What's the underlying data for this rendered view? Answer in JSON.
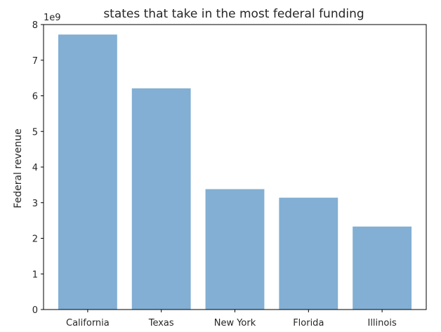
{
  "chart_data": {
    "type": "bar",
    "title": "states that take in the most federal funding",
    "xlabel": "",
    "ylabel": "Federal revenue",
    "y_offset_label": "1e9",
    "categories": [
      "California",
      "Texas",
      "New York",
      "Florida",
      "Illinois"
    ],
    "values": [
      7720000000,
      6210000000,
      3380000000,
      3140000000,
      2330000000
    ],
    "ylim": [
      0,
      8000000000
    ],
    "yticks": [
      0,
      1,
      2,
      3,
      4,
      5,
      6,
      7,
      8
    ],
    "bar_color": "#82afd3",
    "grid": false,
    "legend": "none"
  }
}
